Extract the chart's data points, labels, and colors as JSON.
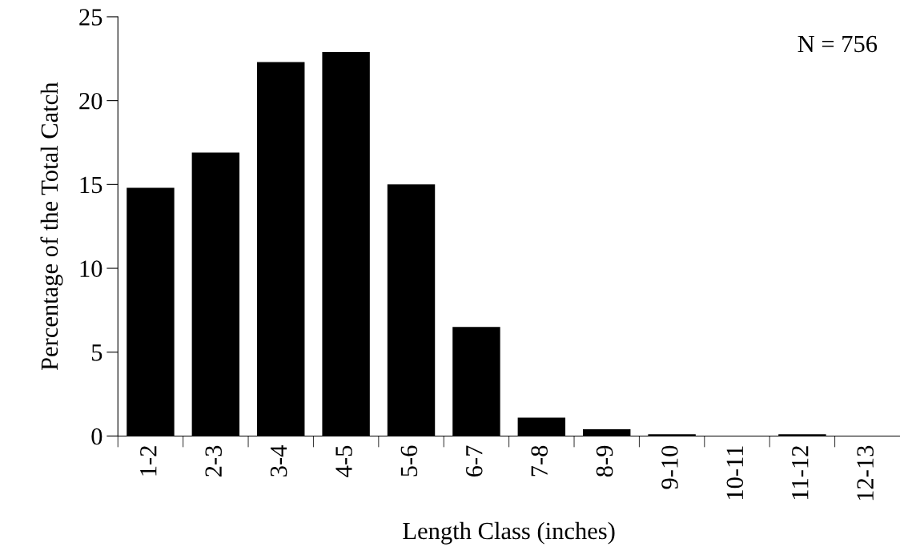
{
  "chart_data": {
    "type": "bar",
    "xlabel": "Length Class (inches)",
    "ylabel": "Percentage of the Total Catch",
    "categories": [
      "1-2",
      "2-3",
      "3-4",
      "4-5",
      "5-6",
      "6-7",
      "7-8",
      "8-9",
      "9-10",
      "10-11",
      "11-12",
      "12-13"
    ],
    "values": [
      14.8,
      16.9,
      22.3,
      22.9,
      15.0,
      6.5,
      1.1,
      0.4,
      0.1,
      0,
      0.1,
      0
    ],
    "color": "#000000",
    "ylim": [
      0,
      25
    ],
    "yticks": [
      0,
      5,
      10,
      15,
      20,
      25
    ],
    "annotations": [
      "N = 756"
    ],
    "grid": false,
    "legend": false
  }
}
